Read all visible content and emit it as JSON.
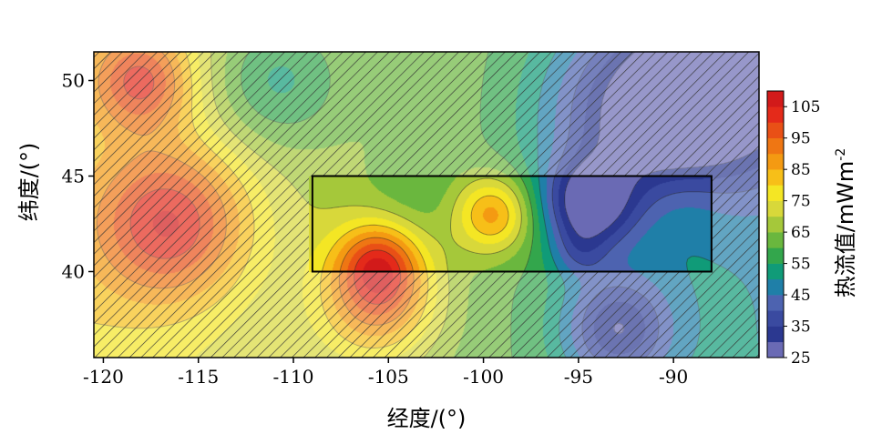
{
  "chart_data": {
    "type": "heatmap",
    "subtype": "filled contour map with hatched overlay",
    "xlabel": "经度/(°)",
    "ylabel": "纬度/(°)",
    "colorbar_label": "热流值/mWm",
    "colorbar_label_superscript": "-2",
    "xlim": [
      -120.5,
      -85.5
    ],
    "ylim": [
      35.5,
      51.5
    ],
    "xticks": [
      -120,
      -115,
      -110,
      -105,
      -100,
      -95,
      -90
    ],
    "xtick_labels": [
      "-120",
      "-115",
      "-110",
      "-105",
      "-100",
      "-95",
      "-90"
    ],
    "yticks": [
      40,
      45,
      50
    ],
    "ytick_labels": [
      "40",
      "45",
      "50"
    ],
    "colorbar": {
      "min": 25,
      "max": 110,
      "step": 5,
      "ticks": [
        25,
        35,
        45,
        55,
        65,
        75,
        85,
        95,
        105
      ],
      "tick_labels": [
        "25",
        "35",
        "45",
        "55",
        "65",
        "75",
        "85",
        "95",
        "105"
      ],
      "colors": [
        "#6a6ab4",
        "#2b3890",
        "#3a4aa0",
        "#4d63b0",
        "#1f7fa8",
        "#109b78",
        "#33a64c",
        "#6ab73e",
        "#a5c83a",
        "#d8d83a",
        "#f4e624",
        "#f7bf18",
        "#f49a12",
        "#ef7613",
        "#e95016",
        "#e42a1a",
        "#d21a1a"
      ]
    },
    "hatched_region": "entire map except highlighted box",
    "highlight_box": {
      "lon": [
        -109,
        -88
      ],
      "lat": [
        40,
        45
      ]
    },
    "anomalies": [
      {
        "lon": -118,
        "lat": 50,
        "value": 90,
        "sigma": 1.8
      },
      {
        "lon": -116.5,
        "lat": 42.5,
        "value": 95,
        "sigma": 2.8
      },
      {
        "lon": -105.5,
        "lat": 38.5,
        "value": 90,
        "sigma": 2.2
      },
      {
        "lon": -105.5,
        "lat": 40.5,
        "value": 88,
        "sigma": 1.5
      },
      {
        "lon": -99.5,
        "lat": 43,
        "value": 90,
        "sigma": 1.4
      },
      {
        "lon": -104,
        "lat": 44,
        "value": 60,
        "sigma": 1.8
      },
      {
        "lon": -111,
        "lat": 50,
        "value": 48,
        "sigma": 2.5
      },
      {
        "lon": -94.5,
        "lat": 43.5,
        "value": 35,
        "sigma": 1.6
      },
      {
        "lon": -92,
        "lat": 48,
        "value": 38,
        "sigma": 3.5
      },
      {
        "lon": -87,
        "lat": 50,
        "value": 35,
        "sigma": 3.5
      },
      {
        "lon": -93,
        "lat": 37,
        "value": 38,
        "sigma": 2.0
      },
      {
        "lon": -89.5,
        "lat": 43.5,
        "value": 68,
        "sigma": 1.5
      },
      {
        "lon": -95,
        "lat": 41,
        "value": 55,
        "sigma": 1.0
      }
    ]
  }
}
